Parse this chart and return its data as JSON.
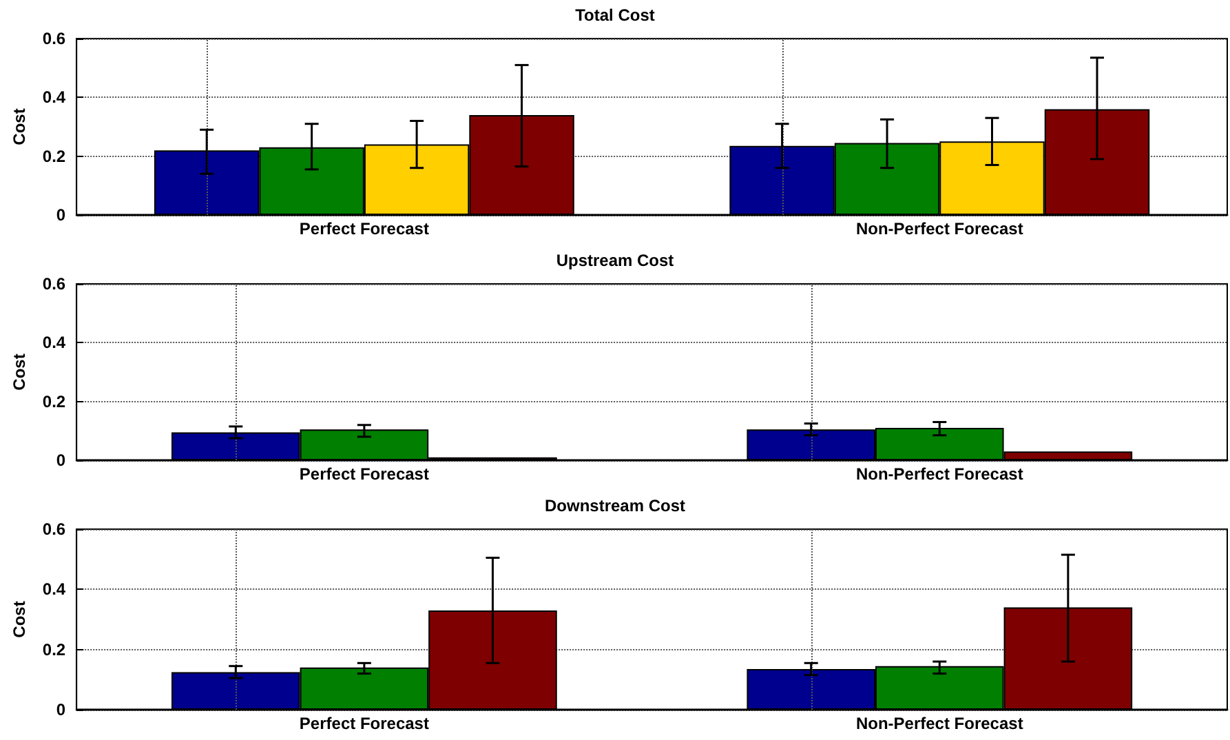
{
  "chart_data": [
    {
      "type": "bar",
      "title": "Total Cost",
      "ylabel": "Cost",
      "categories": [
        "Perfect Forecast",
        "Non-Perfect Forecast"
      ],
      "ylim": [
        0,
        0.6
      ],
      "yticks": [
        0,
        0.2,
        0.4,
        0.6
      ],
      "grid": true,
      "series": [
        {
          "color": "#00008f",
          "values": [
            0.22,
            0.235
          ],
          "errors": [
            [
              0.14,
              0.29
            ],
            [
              0.16,
              0.31
            ]
          ]
        },
        {
          "color": "#007f00",
          "values": [
            0.23,
            0.245
          ],
          "errors": [
            [
              0.155,
              0.31
            ],
            [
              0.16,
              0.325
            ]
          ]
        },
        {
          "color": "#ffcf00",
          "values": [
            0.24,
            0.25
          ],
          "errors": [
            [
              0.16,
              0.32
            ],
            [
              0.17,
              0.33
            ]
          ]
        },
        {
          "color": "#7f0000",
          "values": [
            0.34,
            0.36
          ],
          "errors": [
            [
              0.165,
              0.51
            ],
            [
              0.19,
              0.535
            ]
          ]
        }
      ]
    },
    {
      "type": "bar",
      "title": "Upstream Cost",
      "ylabel": "Cost",
      "categories": [
        "Perfect Forecast",
        "Non-Perfect Forecast"
      ],
      "ylim": [
        0,
        0.6
      ],
      "yticks": [
        0,
        0.2,
        0.4,
        0.6
      ],
      "grid": true,
      "series": [
        {
          "color": "#00008f",
          "values": [
            0.095,
            0.105
          ],
          "errors": [
            [
              0.075,
              0.115
            ],
            [
              0.085,
              0.125
            ]
          ]
        },
        {
          "color": "#007f00",
          "values": [
            0.105,
            0.11
          ],
          "errors": [
            [
              0.08,
              0.12
            ],
            [
              0.085,
              0.13
            ]
          ]
        },
        {
          "color": "#7f0000",
          "values": [
            0.01,
            0.03
          ]
        }
      ]
    },
    {
      "type": "bar",
      "title": "Downstream Cost",
      "ylabel": "Cost",
      "categories": [
        "Perfect Forecast",
        "Non-Perfect Forecast"
      ],
      "ylim": [
        0,
        0.6
      ],
      "yticks": [
        0,
        0.2,
        0.4,
        0.6
      ],
      "grid": true,
      "series": [
        {
          "color": "#00008f",
          "values": [
            0.125,
            0.135
          ],
          "errors": [
            [
              0.105,
              0.145
            ],
            [
              0.115,
              0.155
            ]
          ]
        },
        {
          "color": "#007f00",
          "values": [
            0.14,
            0.145
          ],
          "errors": [
            [
              0.12,
              0.155
            ],
            [
              0.12,
              0.16
            ]
          ]
        },
        {
          "color": "#7f0000",
          "values": [
            0.33,
            0.34
          ],
          "errors": [
            [
              0.155,
              0.505
            ],
            [
              0.16,
              0.515
            ]
          ]
        }
      ]
    }
  ]
}
